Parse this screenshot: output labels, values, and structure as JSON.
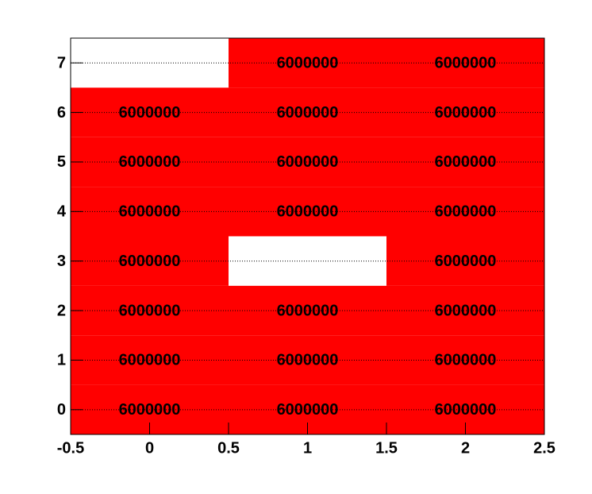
{
  "chart_data": {
    "type": "heatmap",
    "x": [
      0,
      1,
      2
    ],
    "y": [
      0,
      1,
      2,
      3,
      4,
      5,
      6,
      7
    ],
    "values": [
      [
        6000000,
        6000000,
        6000000
      ],
      [
        6000000,
        6000000,
        6000000
      ],
      [
        6000000,
        6000000,
        6000000
      ],
      [
        6000000,
        null,
        6000000
      ],
      [
        6000000,
        6000000,
        6000000
      ],
      [
        6000000,
        6000000,
        6000000
      ],
      [
        6000000,
        6000000,
        6000000
      ],
      [
        null,
        6000000,
        6000000
      ]
    ],
    "color": "#ff0000",
    "xlim": [
      -0.5,
      2.5
    ],
    "ylim": [
      -0.5,
      7.5
    ],
    "xticks": [
      -0.5,
      0,
      0.5,
      1,
      1.5,
      2,
      2.5
    ],
    "yticks": [
      0,
      1,
      2,
      3,
      4,
      5,
      6,
      7
    ],
    "grid": true
  }
}
